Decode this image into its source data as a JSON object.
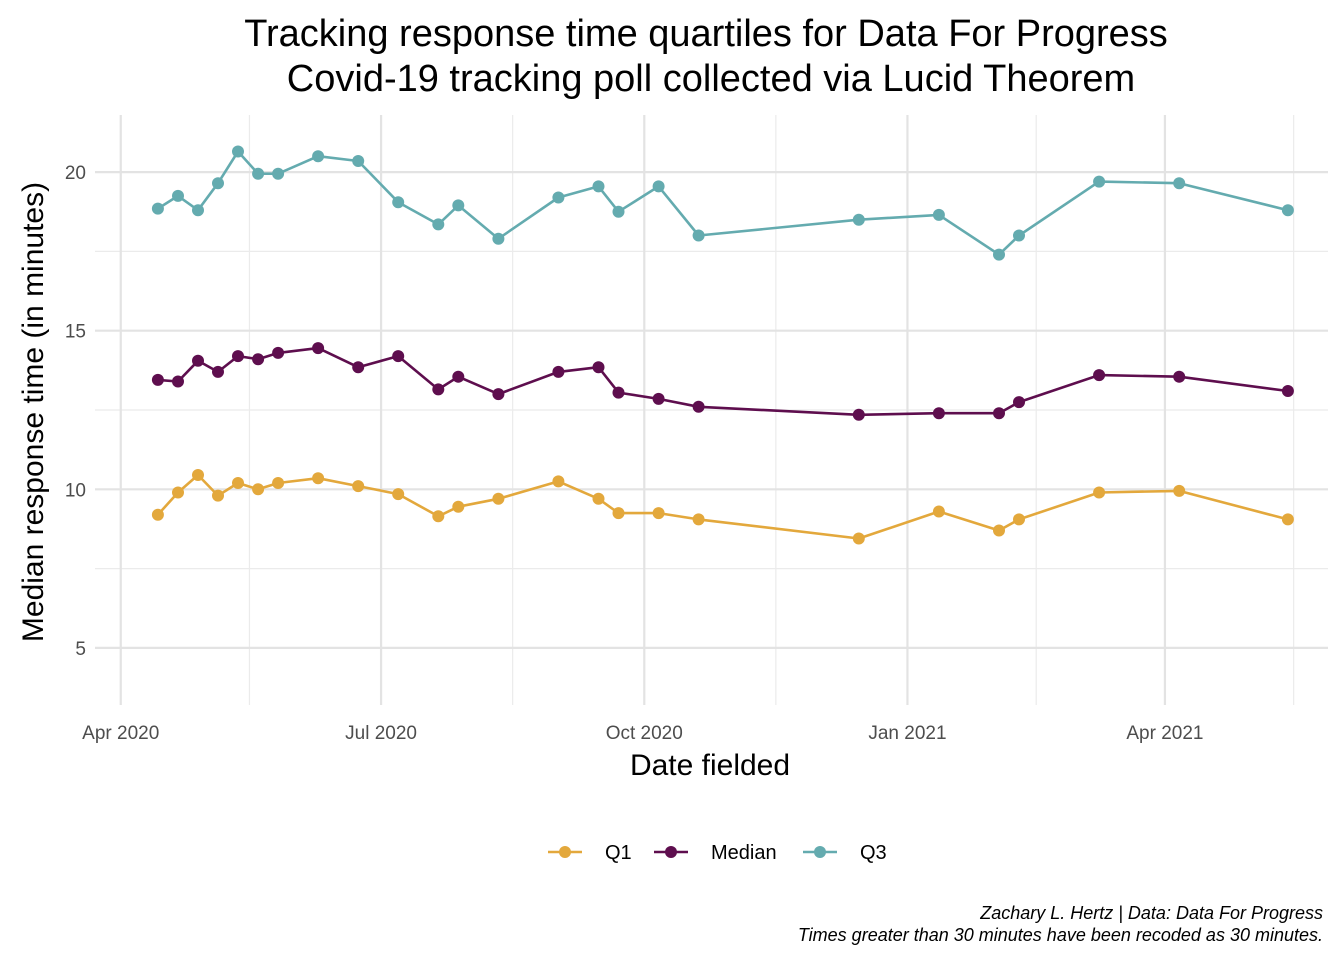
{
  "chart_data": {
    "type": "line",
    "title": [
      "Tracking response time quartiles for Data For Progress",
      "Covid-19 tracking poll collected via Lucid Theorem"
    ],
    "xlabel": "Date fielded",
    "ylabel": "Median response time (in minutes)",
    "ylim": [
      3.2,
      21.8
    ],
    "y_ticks": [
      5,
      10,
      15,
      20
    ],
    "xlim": [
      "2020-03-23",
      "2021-05-28"
    ],
    "x_ticks": [
      {
        "date": "2020-04-01",
        "label": "Apr 2020"
      },
      {
        "date": "2020-07-01",
        "label": "Jul 2020"
      },
      {
        "date": "2020-10-01",
        "label": "Oct 2020"
      },
      {
        "date": "2021-01-01",
        "label": "Jan 2021"
      },
      {
        "date": "2021-04-01",
        "label": "Apr 2021"
      }
    ],
    "x_minor_ticks": [
      "2020-05-16",
      "2020-08-16",
      "2020-11-16",
      "2021-02-15",
      "2021-05-16"
    ],
    "grid": true,
    "legend_position": "bottom",
    "x": [
      "2020-04-14",
      "2020-04-21",
      "2020-04-28",
      "2020-05-05",
      "2020-05-12",
      "2020-05-19",
      "2020-05-26",
      "2020-06-09",
      "2020-06-23",
      "2020-07-07",
      "2020-07-21",
      "2020-07-28",
      "2020-08-11",
      "2020-09-01",
      "2020-09-15",
      "2020-09-22",
      "2020-10-06",
      "2020-10-20",
      "2020-12-15",
      "2021-01-12",
      "2021-02-02",
      "2021-02-09",
      "2021-03-09",
      "2021-04-06",
      "2021-05-14"
    ],
    "series": [
      {
        "name": "Q1",
        "color": "#E3A83C",
        "values": [
          9.2,
          9.9,
          10.45,
          9.8,
          10.2,
          10.0,
          10.2,
          10.35,
          10.1,
          9.85,
          9.15,
          9.45,
          9.7,
          10.25,
          9.7,
          9.25,
          9.25,
          9.05,
          8.45,
          9.3,
          8.7,
          9.05,
          9.9,
          9.95,
          9.05
        ]
      },
      {
        "name": "Median",
        "color": "#5E0E4E",
        "values": [
          13.45,
          13.4,
          14.05,
          13.7,
          14.2,
          14.1,
          14.3,
          14.45,
          13.85,
          14.2,
          13.15,
          13.55,
          13.0,
          13.7,
          13.85,
          13.05,
          12.85,
          12.6,
          12.35,
          12.4,
          12.4,
          12.75,
          13.6,
          13.55,
          13.1
        ]
      },
      {
        "name": "Q3",
        "color": "#64ABAF",
        "values": [
          18.85,
          19.25,
          18.8,
          19.65,
          20.65,
          19.95,
          19.95,
          20.5,
          20.35,
          19.05,
          18.35,
          18.95,
          17.9,
          19.2,
          19.55,
          18.75,
          19.55,
          18.0,
          18.5,
          18.65,
          17.4,
          18.0,
          19.7,
          19.65,
          18.8
        ]
      }
    ]
  },
  "caption": {
    "line1": "Zachary L. Hertz | Data: Data For Progress",
    "line2": "Times greater than 30 minutes have been recoded as 30 minutes."
  }
}
